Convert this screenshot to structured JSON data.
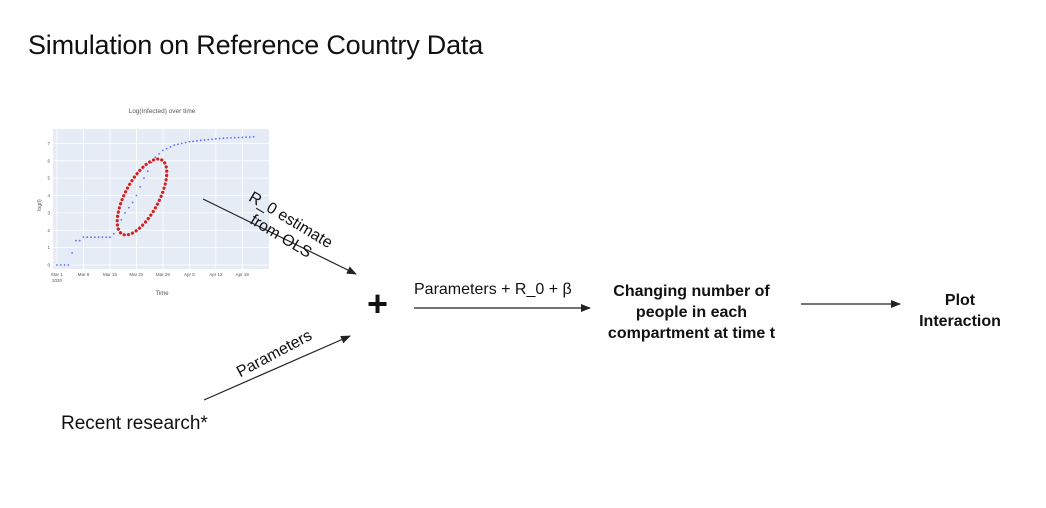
{
  "title": "Simulation on Reference Country Data",
  "chart_data": {
    "type": "scatter",
    "title": "Log(Infected) over time",
    "xlabel": "Time",
    "ylabel": "log(I)",
    "x_ticks": [
      "Mar 1\n2020",
      "Mar 8",
      "Mar 15",
      "Mar 22",
      "Mar 29",
      "Apr 5",
      "Apr 12",
      "Apr 19"
    ],
    "y_ticks": [
      0,
      1,
      2,
      3,
      4,
      5,
      6,
      7
    ],
    "ylim": [
      0,
      7.6
    ],
    "x_day_range": [
      0,
      55
    ],
    "points": [
      [
        0,
        0
      ],
      [
        1,
        0
      ],
      [
        2,
        0
      ],
      [
        3,
        0
      ],
      [
        4,
        0.7
      ],
      [
        5,
        1.4
      ],
      [
        6,
        1.4
      ],
      [
        7,
        1.6
      ],
      [
        8,
        1.6
      ],
      [
        9,
        1.6
      ],
      [
        10,
        1.6
      ],
      [
        11,
        1.6
      ],
      [
        12,
        1.6
      ],
      [
        13,
        1.6
      ],
      [
        14,
        1.6
      ],
      [
        15,
        1.8
      ],
      [
        16,
        2.1
      ],
      [
        17,
        2.6
      ],
      [
        18,
        3.0
      ],
      [
        19,
        3.3
      ],
      [
        20,
        3.6
      ],
      [
        21,
        4.0
      ],
      [
        22,
        4.5
      ],
      [
        23,
        5.0
      ],
      [
        24,
        5.4
      ],
      [
        25,
        5.9
      ],
      [
        26,
        6.2
      ],
      [
        27,
        6.4
      ],
      [
        28,
        6.6
      ],
      [
        29,
        6.7
      ],
      [
        30,
        6.8
      ],
      [
        31,
        6.9
      ],
      [
        32,
        6.95
      ],
      [
        33,
        7.0
      ],
      [
        34,
        7.05
      ],
      [
        35,
        7.1
      ],
      [
        36,
        7.12
      ],
      [
        37,
        7.15
      ],
      [
        38,
        7.18
      ],
      [
        39,
        7.2
      ],
      [
        40,
        7.22
      ],
      [
        41,
        7.24
      ],
      [
        42,
        7.26
      ],
      [
        43,
        7.28
      ],
      [
        44,
        7.3
      ],
      [
        45,
        7.31
      ],
      [
        46,
        7.32
      ],
      [
        47,
        7.33
      ],
      [
        48,
        7.34
      ],
      [
        49,
        7.35
      ],
      [
        50,
        7.36
      ],
      [
        51,
        7.37
      ],
      [
        52,
        7.38
      ]
    ],
    "grid": true,
    "highlight": "red dotted ellipse around rising segment"
  },
  "labels": {
    "r0_line1": "R_0 estimate",
    "r0_line2": "from OLS",
    "parameters": "Parameters",
    "recent_research": "Recent research*",
    "plus": "+",
    "params_r0_beta": "Parameters + R_0 + β",
    "changing_1": "Changing number of",
    "changing_2": "people in each",
    "changing_3": "compartment at time t",
    "plot_1": "Plot",
    "plot_2": "Interaction"
  },
  "colors": {
    "plot_bg": "#e5ecf6",
    "points": "#636efa",
    "highlight": "#d62020",
    "arrow": "#222222"
  }
}
